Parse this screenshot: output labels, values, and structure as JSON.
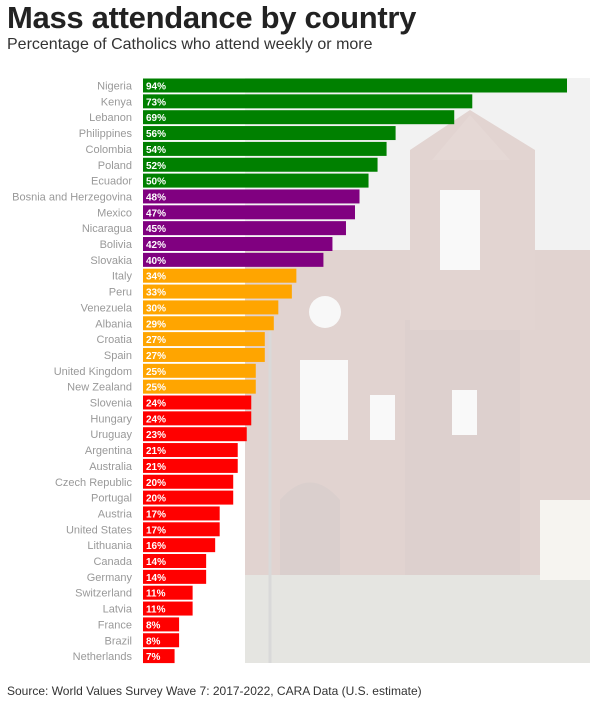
{
  "title": "Mass attendance by country",
  "subtitle": "Percentage of Catholics who attend weekly or more",
  "source": "Source: World Values Survey Wave 7: 2017-2022, CARA Data (U.S. estimate)",
  "colors": {
    "green": "#008000",
    "purple": "#800080",
    "orange": "#ffa500",
    "red": "#ff0000",
    "label": "#999999",
    "value_text": "#ffffff"
  },
  "chart_data": {
    "type": "bar",
    "orientation": "horizontal",
    "categories": [
      "Nigeria",
      "Kenya",
      "Lebanon",
      "Philippines",
      "Colombia",
      "Poland",
      "Ecuador",
      "Bosnia and Herzegovina",
      "Mexico",
      "Nicaragua",
      "Bolivia",
      "Slovakia",
      "Italy",
      "Peru",
      "Venezuela",
      "Albania",
      "Croatia",
      "Spain",
      "United Kingdom",
      "New Zealand",
      "Slovenia",
      "Hungary",
      "Uruguay",
      "Argentina",
      "Australia",
      "Czech Republic",
      "Portugal",
      "Austria",
      "United States",
      "Lithuania",
      "Canada",
      "Germany",
      "Switzerland",
      "Latvia",
      "France",
      "Brazil",
      "Netherlands"
    ],
    "values": [
      94,
      73,
      69,
      56,
      54,
      52,
      50,
      48,
      47,
      45,
      42,
      40,
      34,
      33,
      30,
      29,
      27,
      27,
      25,
      25,
      24,
      24,
      23,
      21,
      21,
      20,
      20,
      17,
      17,
      16,
      14,
      14,
      11,
      11,
      8,
      8,
      7
    ],
    "value_labels": [
      "94%",
      "73%",
      "69%",
      "56%",
      "54%",
      "52%",
      "50%",
      "48%",
      "47%",
      "45%",
      "42%",
      "40%",
      "34%",
      "33%",
      "30%",
      "29%",
      "27%",
      "27%",
      "25%",
      "25%",
      "24%",
      "24%",
      "23%",
      "21%",
      "21%",
      "20%",
      "20%",
      "17%",
      "17%",
      "16%",
      "14%",
      "14%",
      "11%",
      "11%",
      "8%",
      "8%",
      "7%"
    ],
    "bar_colors": [
      "green",
      "green",
      "green",
      "green",
      "green",
      "green",
      "green",
      "purple",
      "purple",
      "purple",
      "purple",
      "purple",
      "orange",
      "orange",
      "orange",
      "orange",
      "orange",
      "orange",
      "orange",
      "orange",
      "red",
      "red",
      "red",
      "red",
      "red",
      "red",
      "red",
      "red",
      "red",
      "red",
      "red",
      "red",
      "red",
      "red",
      "red",
      "red",
      "red"
    ],
    "xlim": [
      0,
      94
    ],
    "grid": false,
    "legend": "none"
  }
}
